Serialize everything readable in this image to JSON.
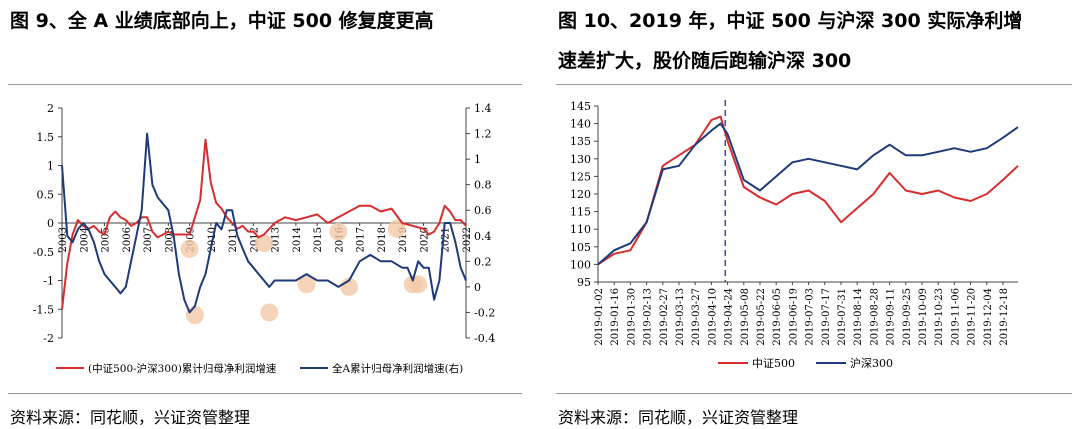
{
  "left": {
    "title": "图 9、全 A 业绩底部向上，中证 500 修复度更高",
    "source": "资料来源：同花顺，兴证资管整理"
  },
  "right": {
    "title_line1": "图 10、2019 年，中证 500 与沪深 300 实际净利增",
    "title_line2": "速差扩大，股价随后跑输沪深 300",
    "source": "资料来源：同花顺，兴证资管整理"
  },
  "colors": {
    "red": "#d62e2e",
    "blue": "#1f3a7a",
    "highlight": "#f2c9a8"
  },
  "chart_data": [
    {
      "type": "line",
      "title": "",
      "y_left_ticks": [
        "2",
        "1.5",
        "1",
        "0.5",
        "0",
        "-0.5",
        "-1",
        "-1.5",
        "-2"
      ],
      "y_right_ticks": [
        "1.4",
        "1.2",
        "1",
        "0.8",
        "0.6",
        "0.4",
        "0.2",
        "0",
        "-0.2",
        "-0.4"
      ],
      "ylim_left": [
        -2,
        2
      ],
      "ylim_right": [
        -0.4,
        1.4
      ],
      "x_ticks": [
        "2003",
        "2004",
        "2005",
        "2006",
        "2007",
        "2008",
        "2009",
        "2010",
        "2011",
        "2012",
        "2013",
        "2014",
        "2015",
        "2016",
        "2017",
        "2018",
        "2019",
        "2020",
        "2021",
        "2022"
      ],
      "xlim": [
        2003.0,
        2022.0
      ],
      "legend": [
        "(中证500-沪深300)累计归母净利润增速",
        "全A累计归母净利润增速(右)"
      ],
      "legend_position": "bottom",
      "series": [
        {
          "name": "(中证500-沪深300)累计归母净利润增速",
          "axis": "left",
          "x": [
            2003.0,
            2003.25,
            2003.5,
            2003.75,
            2004.0,
            2004.25,
            2004.5,
            2004.75,
            2005.0,
            2005.25,
            2005.5,
            2005.75,
            2006.0,
            2006.25,
            2006.5,
            2006.75,
            2007.0,
            2007.25,
            2007.5,
            2007.75,
            2008.0,
            2008.25,
            2008.5,
            2008.75,
            2009.0,
            2009.25,
            2009.5,
            2009.75,
            2010.0,
            2010.25,
            2010.5,
            2010.75,
            2011.0,
            2011.25,
            2011.5,
            2011.75,
            2012.0,
            2012.25,
            2012.5,
            2012.75,
            2013.0,
            2013.5,
            2014.0,
            2014.5,
            2015.0,
            2015.5,
            2016.0,
            2016.5,
            2017.0,
            2017.5,
            2018.0,
            2018.5,
            2019.0,
            2019.5,
            2020.0,
            2020.25,
            2020.5,
            2020.75,
            2021.0,
            2021.25,
            2021.5,
            2021.75,
            2022.0
          ],
          "y": [
            -1.5,
            -0.7,
            -0.2,
            0.05,
            -0.05,
            -0.1,
            -0.05,
            -0.15,
            -0.2,
            0.1,
            0.2,
            0.1,
            0.05,
            -0.05,
            0.0,
            0.1,
            0.1,
            -0.15,
            -0.25,
            -0.2,
            -0.15,
            -0.2,
            -0.2,
            -0.2,
            -0.2,
            0.1,
            0.4,
            1.45,
            0.7,
            0.35,
            0.25,
            0.1,
            0.0,
            -0.1,
            -0.05,
            -0.15,
            -0.15,
            -0.25,
            -0.2,
            -0.1,
            0.0,
            0.1,
            0.05,
            0.1,
            0.15,
            0.0,
            0.1,
            0.2,
            0.3,
            0.3,
            0.2,
            0.25,
            0.0,
            -0.05,
            -0.1,
            -0.2,
            -0.15,
            0.0,
            0.3,
            0.2,
            0.05,
            0.05,
            -0.05
          ]
        },
        {
          "name": "全A累计归母净利润增速(右)",
          "axis": "right",
          "x": [
            2003.0,
            2003.25,
            2003.5,
            2003.75,
            2004.0,
            2004.25,
            2004.5,
            2004.75,
            2005.0,
            2005.25,
            2005.5,
            2005.75,
            2006.0,
            2006.25,
            2006.5,
            2006.75,
            2007.0,
            2007.25,
            2007.5,
            2007.75,
            2008.0,
            2008.25,
            2008.5,
            2008.75,
            2009.0,
            2009.25,
            2009.5,
            2009.75,
            2010.0,
            2010.25,
            2010.5,
            2010.75,
            2011.0,
            2011.25,
            2011.5,
            2011.75,
            2012.0,
            2012.25,
            2012.5,
            2012.75,
            2013.0,
            2013.5,
            2014.0,
            2014.5,
            2015.0,
            2015.5,
            2016.0,
            2016.5,
            2017.0,
            2017.5,
            2018.0,
            2018.5,
            2019.0,
            2019.25,
            2019.5,
            2019.75,
            2020.0,
            2020.25,
            2020.5,
            2020.75,
            2021.0,
            2021.25,
            2021.5,
            2021.75,
            2022.0
          ],
          "y": [
            0.95,
            0.4,
            0.35,
            0.45,
            0.5,
            0.45,
            0.35,
            0.2,
            0.1,
            0.05,
            0.0,
            -0.05,
            0.0,
            0.2,
            0.4,
            0.6,
            1.2,
            0.8,
            0.7,
            0.65,
            0.6,
            0.4,
            0.1,
            -0.1,
            -0.2,
            -0.15,
            0.0,
            0.1,
            0.3,
            0.5,
            0.45,
            0.6,
            0.6,
            0.4,
            0.3,
            0.2,
            0.15,
            0.1,
            0.05,
            0.0,
            0.05,
            0.05,
            0.05,
            0.1,
            0.05,
            0.05,
            0.0,
            0.05,
            0.2,
            0.25,
            0.2,
            0.2,
            0.15,
            0.15,
            0.05,
            0.2,
            0.15,
            0.15,
            -0.1,
            0.05,
            0.5,
            0.5,
            0.35,
            0.15,
            0.05
          ]
        }
      ]
    },
    {
      "type": "line",
      "title": "",
      "y_ticks": [
        "145",
        "140",
        "135",
        "130",
        "125",
        "120",
        "115",
        "110",
        "105",
        "100",
        "95"
      ],
      "ylim": [
        95,
        145
      ],
      "x_ticks": [
        "2019-01-02",
        "2019-01-16",
        "2019-01-30",
        "2019-02-13",
        "2019-02-27",
        "2019-03-13",
        "2019-03-27",
        "2019-04-10",
        "2019-04-24",
        "2019-05-08",
        "2019-05-22",
        "2019-06-05",
        "2019-06-19",
        "2019-07-03",
        "2019-07-17",
        "2019-07-31",
        "2019-08-14",
        "2019-08-28",
        "2019-09-11",
        "2019-09-25",
        "2019-10-09",
        "2019-10-23",
        "2019-11-06",
        "2019-11-20",
        "2019-12-04",
        "2019-12-18"
      ],
      "annotation": "2019-04-22",
      "legend": [
        "中证500",
        "沪深300"
      ],
      "legend_position": "bottom",
      "series": [
        {
          "name": "中证500",
          "x": [
            "2019-01-02",
            "2019-01-16",
            "2019-01-30",
            "2019-02-13",
            "2019-02-27",
            "2019-03-13",
            "2019-03-27",
            "2019-04-10",
            "2019-04-18",
            "2019-04-24",
            "2019-05-08",
            "2019-05-22",
            "2019-06-05",
            "2019-06-19",
            "2019-07-03",
            "2019-07-17",
            "2019-07-31",
            "2019-08-14",
            "2019-08-28",
            "2019-09-11",
            "2019-09-25",
            "2019-10-09",
            "2019-10-23",
            "2019-11-06",
            "2019-11-20",
            "2019-12-04",
            "2019-12-18",
            "2019-12-31"
          ],
          "y": [
            100,
            103,
            104,
            112,
            128,
            131,
            134,
            141,
            142,
            135,
            122,
            119,
            117,
            120,
            121,
            118,
            112,
            116,
            120,
            126,
            121,
            120,
            121,
            119,
            118,
            120,
            124,
            128
          ]
        },
        {
          "name": "沪深300",
          "x": [
            "2019-01-02",
            "2019-01-16",
            "2019-01-30",
            "2019-02-13",
            "2019-02-27",
            "2019-03-13",
            "2019-03-27",
            "2019-04-10",
            "2019-04-18",
            "2019-04-24",
            "2019-05-08",
            "2019-05-22",
            "2019-06-05",
            "2019-06-19",
            "2019-07-03",
            "2019-07-17",
            "2019-07-31",
            "2019-08-14",
            "2019-08-28",
            "2019-09-11",
            "2019-09-25",
            "2019-10-09",
            "2019-10-23",
            "2019-11-06",
            "2019-11-20",
            "2019-12-04",
            "2019-12-18",
            "2019-12-31"
          ],
          "y": [
            100,
            104,
            106,
            112,
            127,
            128,
            134,
            138,
            140,
            137,
            124,
            121,
            125,
            129,
            130,
            129,
            128,
            127,
            131,
            134,
            131,
            131,
            132,
            133,
            132,
            133,
            136,
            139
          ]
        }
      ]
    }
  ]
}
